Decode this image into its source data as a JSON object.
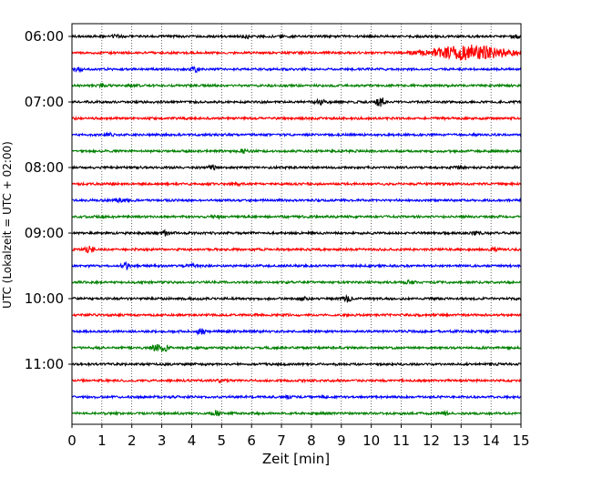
{
  "chart_data": {
    "type": "line",
    "subtype": "helicorder",
    "xlabel": "Zeit  [min]",
    "ylabel": "UTC (Lokalzeit = UTC + 02:00)",
    "xlim": [
      0,
      15
    ],
    "x_ticks": [
      0,
      1,
      2,
      3,
      4,
      5,
      6,
      7,
      8,
      9,
      10,
      11,
      12,
      13,
      14,
      15
    ],
    "y_tick_labels": [
      "06:00",
      "07:00",
      "08:00",
      "09:00",
      "10:00",
      "11:00"
    ],
    "grid": "vertical-dotted",
    "trace_minutes": 15,
    "trace_count": 24,
    "start_time": "06:00",
    "colors": [
      "#000000",
      "#ff0000",
      "#0000ff",
      "#008000"
    ],
    "events": [
      {
        "trace": 0,
        "minute": 1.5,
        "amp": 0.35
      },
      {
        "trace": 0,
        "minute": 5.8,
        "amp": 0.45
      },
      {
        "trace": 0,
        "minute": 14.9,
        "amp": 0.35
      },
      {
        "trace": 1,
        "minute": 13.3,
        "amp": 1.9,
        "duration": 1.3
      },
      {
        "trace": 2,
        "minute": 0.2,
        "amp": 0.55
      },
      {
        "trace": 2,
        "minute": 4.1,
        "amp": 0.6
      },
      {
        "trace": 3,
        "minute": 1.0,
        "amp": 0.3
      },
      {
        "trace": 4,
        "minute": 8.3,
        "amp": 0.6
      },
      {
        "trace": 4,
        "minute": 10.3,
        "amp": 1.2
      },
      {
        "trace": 6,
        "minute": 1.3,
        "amp": 0.3
      },
      {
        "trace": 7,
        "minute": 5.7,
        "amp": 0.45
      },
      {
        "trace": 8,
        "minute": 4.7,
        "amp": 0.6
      },
      {
        "trace": 8,
        "minute": 13.0,
        "amp": 0.3
      },
      {
        "trace": 9,
        "minute": 5.5,
        "amp": 0.35
      },
      {
        "trace": 10,
        "minute": 1.6,
        "amp": 0.5
      },
      {
        "trace": 11,
        "minute": 4.8,
        "amp": 0.5
      },
      {
        "trace": 12,
        "minute": 3.1,
        "amp": 0.55
      },
      {
        "trace": 12,
        "minute": 13.5,
        "amp": 0.35
      },
      {
        "trace": 13,
        "minute": 0.6,
        "amp": 0.85
      },
      {
        "trace": 13,
        "minute": 14.1,
        "amp": 0.3
      },
      {
        "trace": 14,
        "minute": 1.8,
        "amp": 0.8
      },
      {
        "trace": 14,
        "minute": 4.0,
        "amp": 0.4
      },
      {
        "trace": 15,
        "minute": 11.3,
        "amp": 0.5
      },
      {
        "trace": 16,
        "minute": 7.7,
        "amp": 0.55
      },
      {
        "trace": 16,
        "minute": 9.2,
        "amp": 0.8
      },
      {
        "trace": 18,
        "minute": 4.3,
        "amp": 0.65
      },
      {
        "trace": 19,
        "minute": 2.8,
        "amp": 0.9
      },
      {
        "trace": 19,
        "minute": 3.1,
        "amp": 0.8
      },
      {
        "trace": 21,
        "minute": 5.0,
        "amp": 0.4
      },
      {
        "trace": 22,
        "minute": 7.2,
        "amp": 0.35
      },
      {
        "trace": 23,
        "minute": 4.8,
        "amp": 0.8
      },
      {
        "trace": 23,
        "minute": 12.5,
        "amp": 0.35
      }
    ]
  }
}
